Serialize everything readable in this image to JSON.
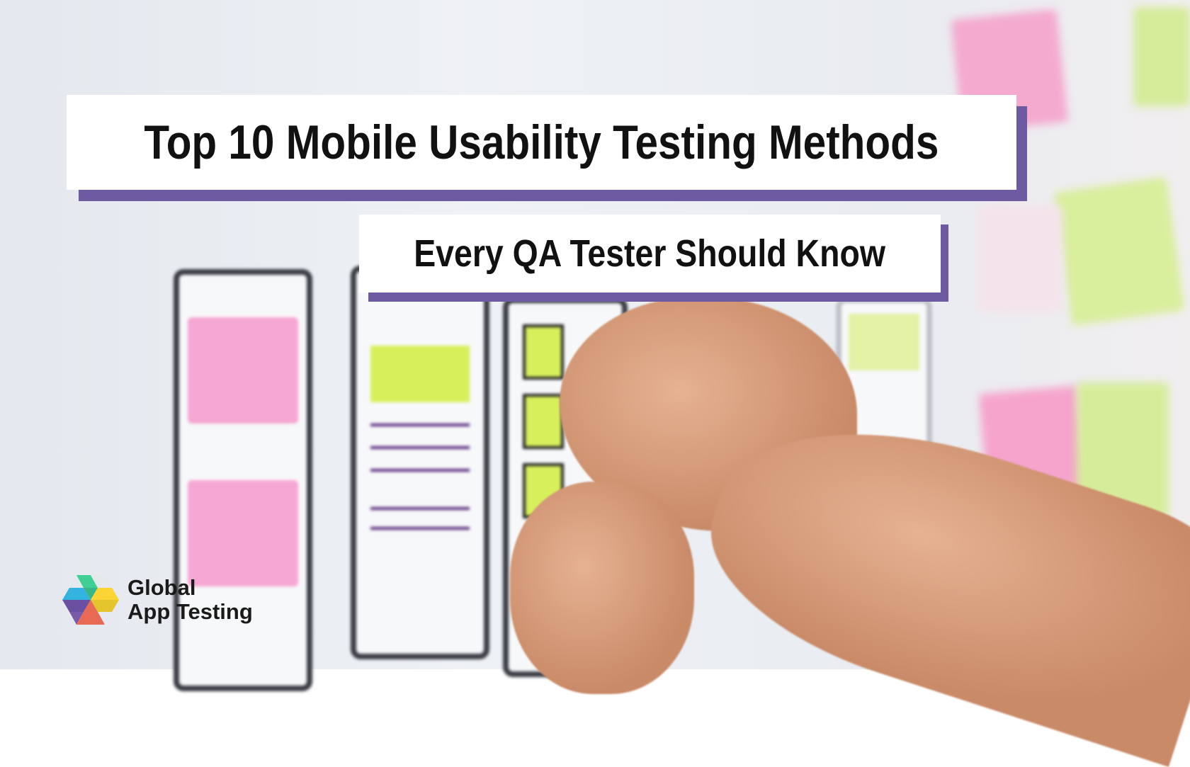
{
  "headline": {
    "title": "Top 10 Mobile Usability Testing Methods",
    "subtitle": "Every QA Tester Should Know"
  },
  "brand": {
    "line1": "Global",
    "line2": "App Testing"
  },
  "colors": {
    "accent": "#6e5aa0",
    "box": "#ffffff",
    "text": "#111111"
  }
}
